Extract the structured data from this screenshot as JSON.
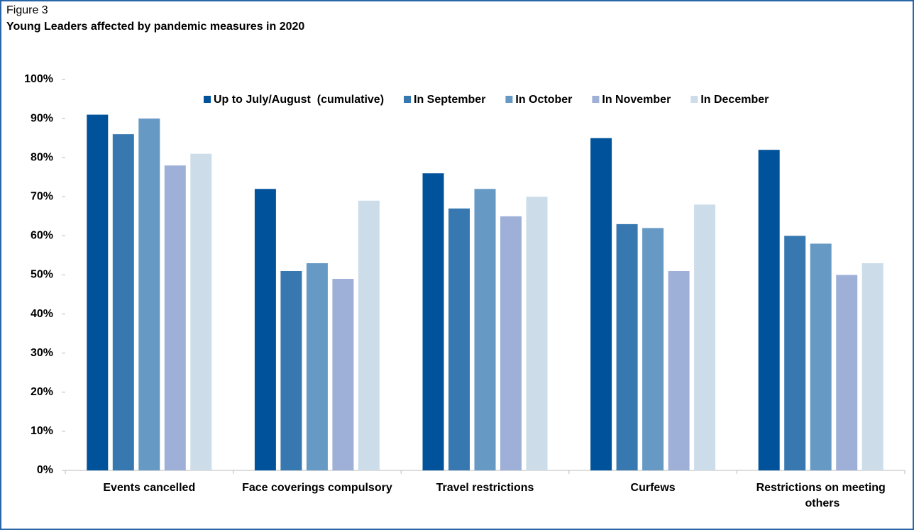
{
  "chart_data": {
    "type": "bar",
    "label": "Figure 3",
    "title": "Young Leaders affected by pandemic measures in 2020",
    "categories": [
      "Events cancelled",
      "Face coverings compulsory",
      "Travel restrictions",
      "Curfews",
      "Restrictions on meeting others"
    ],
    "series": [
      {
        "name": "Up to July/August  (cumulative)",
        "color": "#00539b",
        "values": [
          91,
          72,
          76,
          85,
          82
        ]
      },
      {
        "name": "In September",
        "color": "#3778b0",
        "values": [
          86,
          51,
          67,
          63,
          60
        ]
      },
      {
        "name": "In October",
        "color": "#6699c4",
        "values": [
          90,
          53,
          72,
          62,
          58
        ]
      },
      {
        "name": "In November",
        "color": "#9fb0d8",
        "values": [
          78,
          49,
          65,
          51,
          50
        ]
      },
      {
        "name": "In December",
        "color": "#ccdde9",
        "values": [
          81,
          69,
          70,
          68,
          53
        ]
      }
    ],
    "ylim": [
      0,
      100
    ],
    "yticks": [
      {
        "value": 0,
        "label": "0%"
      },
      {
        "value": 10,
        "label": "10%"
      },
      {
        "value": 20,
        "label": "20%"
      },
      {
        "value": 30,
        "label": "30%"
      },
      {
        "value": 40,
        "label": "40%"
      },
      {
        "value": 50,
        "label": "50%"
      },
      {
        "value": 60,
        "label": "60%"
      },
      {
        "value": 70,
        "label": "70%"
      },
      {
        "value": 80,
        "label": "80%"
      },
      {
        "value": 90,
        "label": "90%"
      },
      {
        "value": 100,
        "label": "100%"
      }
    ],
    "grid": false,
    "legend": "top"
  }
}
